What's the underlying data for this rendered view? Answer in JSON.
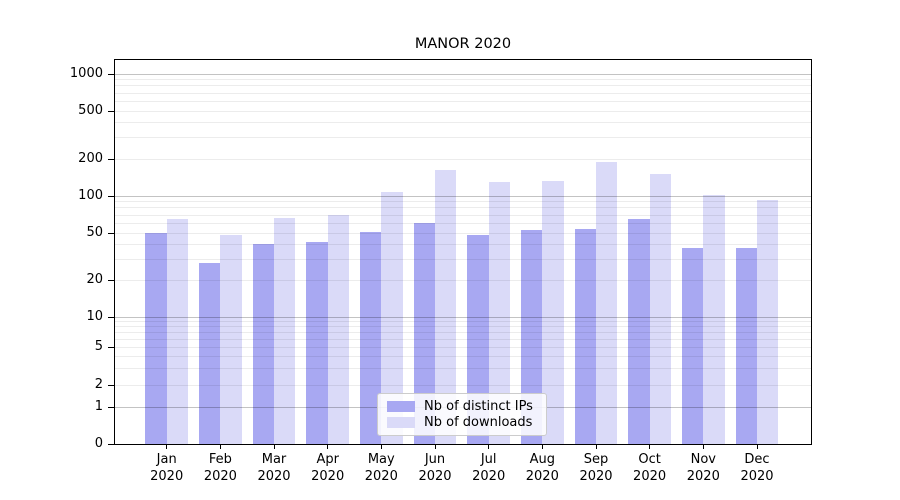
{
  "chart_data": {
    "type": "bar",
    "title": "MANOR 2020",
    "categories": [
      "Jan",
      "Feb",
      "Mar",
      "Apr",
      "May",
      "Jun",
      "Jul",
      "Aug",
      "Sep",
      "Oct",
      "Nov",
      "Dec"
    ],
    "category_year_line": "2020",
    "series": [
      {
        "name": "Nb of distinct IPs",
        "color": "#a8a8f2",
        "values": [
          50,
          28,
          40,
          42,
          51,
          60,
          48,
          53,
          54,
          65,
          37,
          37
        ]
      },
      {
        "name": "Nb of downloads",
        "color": "#dadaf8",
        "values": [
          65,
          48,
          66,
          70,
          108,
          163,
          130,
          133,
          190,
          150,
          102,
          93
        ]
      }
    ],
    "xlabel": "",
    "ylabel": "",
    "yscale": "symlog",
    "yticks": [
      0,
      1,
      2,
      5,
      10,
      20,
      50,
      100,
      200,
      500,
      1000
    ],
    "ylim": [
      0,
      1300
    ],
    "grid": true,
    "legend_position": "lower-center-inside"
  },
  "colors": {
    "bar_ips": "#a8a8f2",
    "bar_downloads": "#dadaf8",
    "major_grid": "rgba(0,0,0,0.235)",
    "minor_grid": "rgba(0,0,0,0.075)",
    "spine": "#000000",
    "text": "#000000"
  }
}
